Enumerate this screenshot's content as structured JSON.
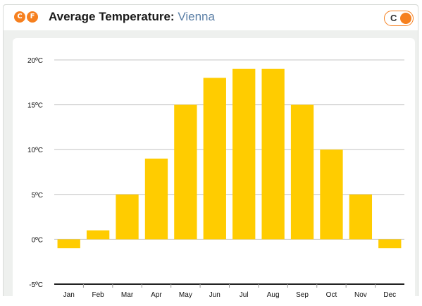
{
  "header": {
    "unit_badges": [
      "C",
      "F"
    ],
    "title_label": "Average Temperature:",
    "title_city": "Vienna",
    "unit_toggle_label": "C"
  },
  "colors": {
    "accent": "#f6801f",
    "bar": "#ffcc00",
    "city_link": "#5b7fa6"
  },
  "chart_data": {
    "type": "bar",
    "categories": [
      "Jan",
      "Feb",
      "Mar",
      "Apr",
      "May",
      "Jun",
      "Jul",
      "Aug",
      "Sep",
      "Oct",
      "Nov",
      "Dec"
    ],
    "values": [
      -1,
      1,
      5,
      9,
      15,
      18,
      19,
      19,
      15,
      10,
      5,
      -1
    ],
    "title": "",
    "xlabel": "",
    "ylabel": "",
    "ylim": [
      -5,
      20
    ],
    "yticks": [
      20,
      15,
      10,
      5,
      0,
      -5
    ],
    "ytick_labels": [
      "20ºC",
      "15ºC",
      "10ºC",
      "5ºC",
      "0ºC",
      "-5ºC"
    ],
    "grid": true,
    "legend": "none"
  }
}
